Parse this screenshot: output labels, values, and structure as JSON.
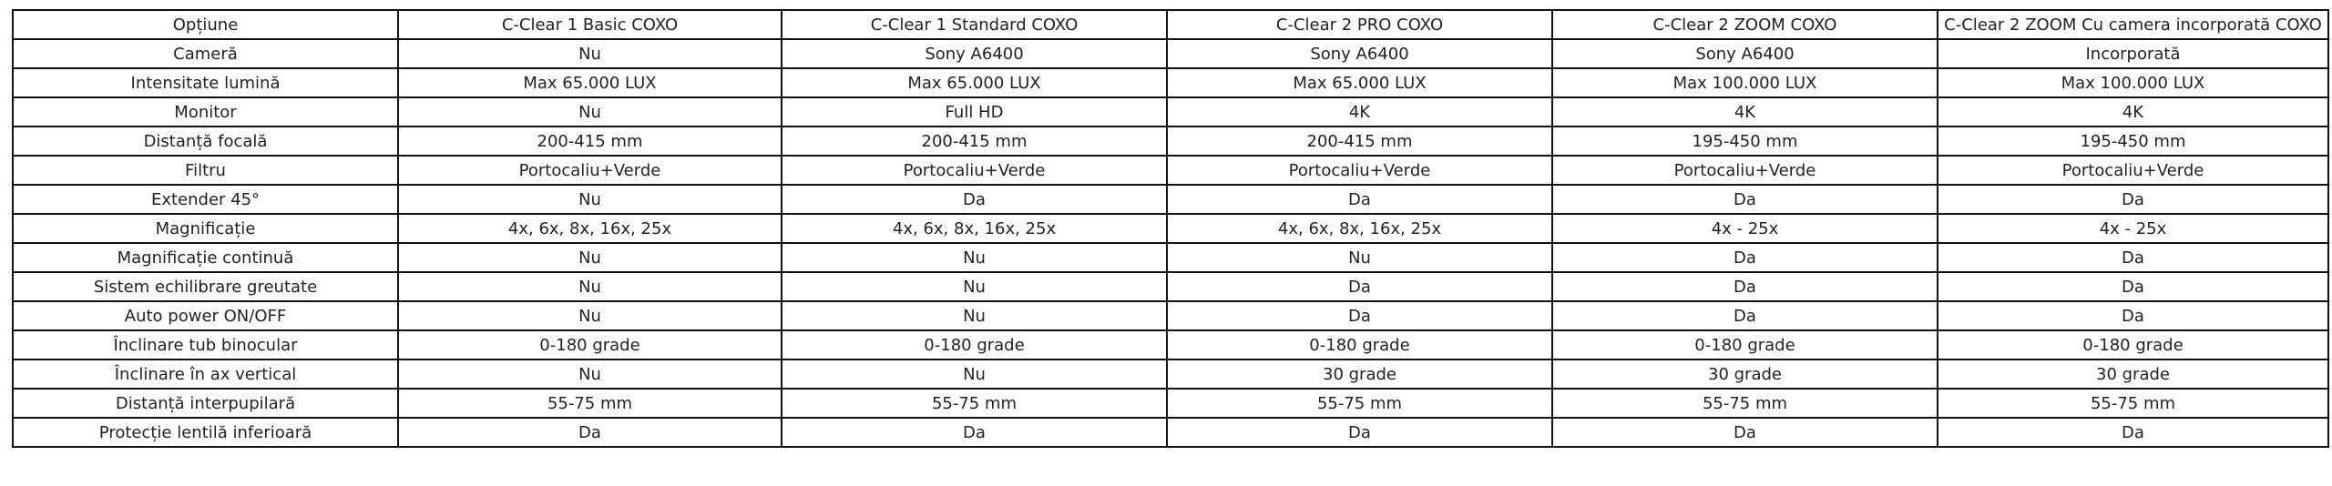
{
  "table": {
    "header": [
      "Opțiune",
      "C-Clear 1 Basic COXO",
      "C-Clear 1 Standard COXO",
      "C-Clear 2 PRO COXO",
      "C-Clear 2  ZOOM COXO",
      "C-Clear 2 ZOOM Cu camera incorporată COXO"
    ],
    "rows": [
      [
        "Cameră",
        "Nu",
        "Sony A6400",
        "Sony A6400",
        "Sony A6400",
        "Incorporată"
      ],
      [
        "Intensitate lumină",
        "Max 65.000 LUX",
        "Max 65.000 LUX",
        "Max 65.000 LUX",
        "Max 100.000 LUX",
        "Max 100.000 LUX"
      ],
      [
        "Monitor",
        "Nu",
        "Full HD",
        "4K",
        "4K",
        "4K"
      ],
      [
        "Distanță focală",
        "200-415 mm",
        "200-415 mm",
        "200-415 mm",
        "195-450 mm",
        "195-450 mm"
      ],
      [
        "Filtru",
        "Portocaliu+Verde",
        "Portocaliu+Verde",
        "Portocaliu+Verde",
        "Portocaliu+Verde",
        "Portocaliu+Verde"
      ],
      [
        "Extender 45°",
        "Nu",
        "Da",
        "Da",
        "Da",
        "Da"
      ],
      [
        "Magnificație",
        "4x, 6x, 8x, 16x, 25x",
        "4x, 6x, 8x, 16x, 25x",
        "4x, 6x, 8x, 16x, 25x",
        "4x - 25x",
        "4x - 25x"
      ],
      [
        "Magnificație continuă",
        "Nu",
        "Nu",
        "Nu",
        "Da",
        "Da"
      ],
      [
        "Sistem echilibrare greutate",
        "Nu",
        "Nu",
        "Da",
        "Da",
        "Da"
      ],
      [
        "Auto power ON/OFF",
        "Nu",
        "Nu",
        "Da",
        "Da",
        "Da"
      ],
      [
        "Înclinare tub binocular",
        "0-180 grade",
        "0-180 grade",
        "0-180 grade",
        "0-180 grade",
        "0-180 grade"
      ],
      [
        "Înclinare în ax vertical",
        "Nu",
        "Nu",
        "30 grade",
        "30 grade",
        "30 grade"
      ],
      [
        "Distanță interpupilară",
        "55-75 mm",
        "55-75 mm",
        "55-75 mm",
        "55-75 mm",
        "55-75 mm"
      ],
      [
        "Protecție lentilă inferioară",
        "Da",
        "Da",
        "Da",
        "Da",
        "Da"
      ]
    ]
  }
}
